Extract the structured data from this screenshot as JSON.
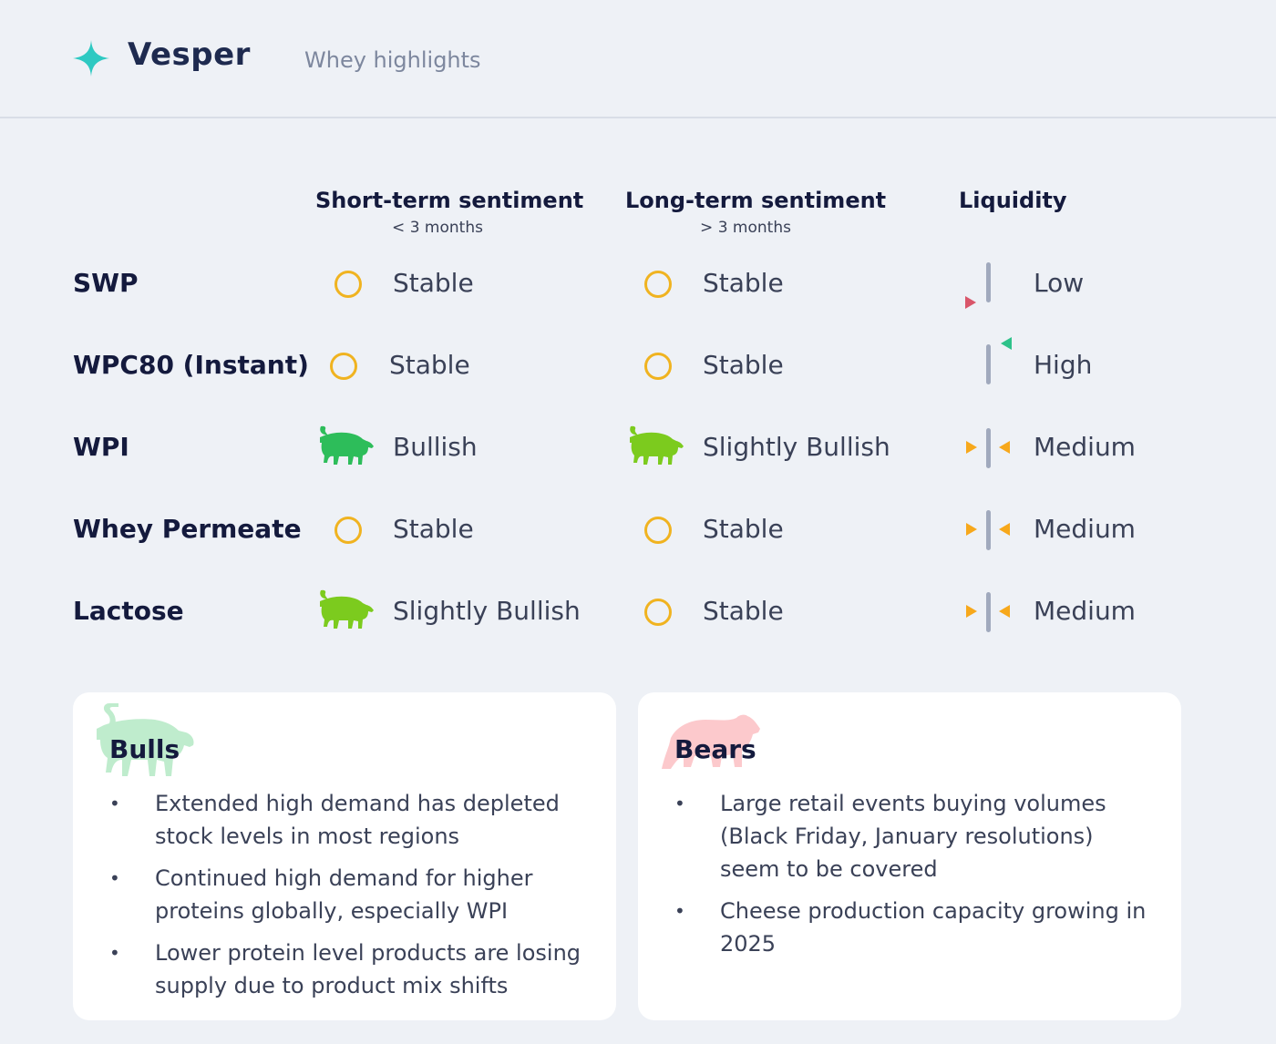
{
  "header": {
    "brand": "Vesper",
    "page_title": "Whey highlights"
  },
  "columns": {
    "short_term": {
      "title": "Short-term sentiment",
      "subtitle": "< 3 months"
    },
    "long_term": {
      "title": "Long-term sentiment",
      "subtitle": "> 3 months"
    },
    "liquidity": {
      "title": "Liquidity"
    }
  },
  "colors": {
    "stable": "#f0b320",
    "bullish": "#2dbd5a",
    "slightly_bullish": "#7ccb1e",
    "low_arrow": "#d9566a",
    "high_arrow": "#2ec28a",
    "medium_arrow": "#f7a81b",
    "liquidity_bar": "#a0a9bd"
  },
  "rows": [
    {
      "name": "SWP",
      "short_term": "Stable",
      "long_term": "Stable",
      "liquidity": "Low"
    },
    {
      "name": "WPC80 (Instant)",
      "short_term": "Stable",
      "long_term": "Stable",
      "liquidity": "High"
    },
    {
      "name": "WPI",
      "short_term": "Bullish",
      "long_term": "Slightly Bullish",
      "liquidity": "Medium"
    },
    {
      "name": "Whey Permeate",
      "short_term": "Stable",
      "long_term": "Stable",
      "liquidity": "Medium"
    },
    {
      "name": "Lactose",
      "short_term": "Slightly Bullish",
      "long_term": "Stable",
      "liquidity": "Medium"
    }
  ],
  "bulls": {
    "title": "Bulls",
    "icon": "bull-icon",
    "items": [
      "Extended high demand has depleted stock levels in most regions",
      "Continued high demand for higher proteins globally, especially WPI",
      "Lower protein level products are losing supply due to product mix shifts"
    ]
  },
  "bears": {
    "title": "Bears",
    "icon": "bear-icon",
    "items": [
      "Large retail events buying volumes (Black Friday, January resolutions) seem to be covered",
      "Cheese production capacity growing in 2025"
    ]
  }
}
